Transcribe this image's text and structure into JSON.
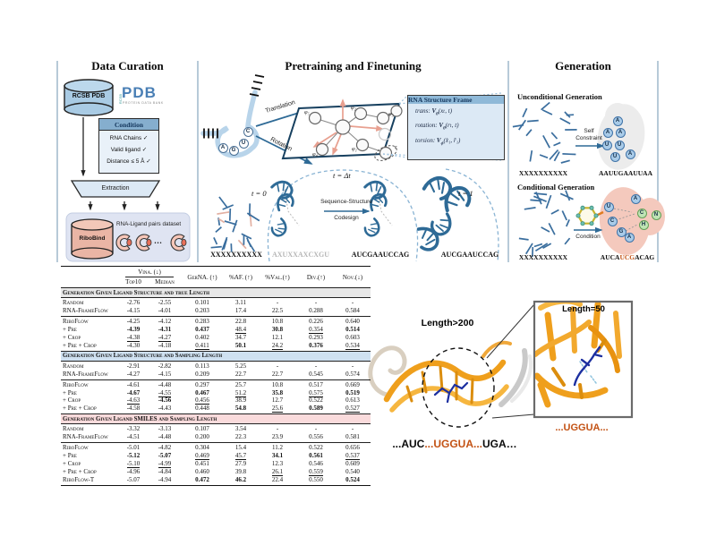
{
  "colors": {
    "steel_blue": "#2e6a96",
    "light_blue_outline": "#b8d4ea",
    "panel_fill": "#dce9f5",
    "box_header_blue": "#8fb9d8",
    "salmon": "#e8a090",
    "section1_bg": "#e7e7e7",
    "section2_bg": "#cfe1f1",
    "section3_bg": "#fadbdc",
    "orange_text": "#c35214",
    "rna_orange": "#f0a125",
    "ligand_blue": "#1c2fa0",
    "circle_blue": "#a9cbe8",
    "circle_green": "#bfe3b4",
    "blob_pink": "#f4c9bd",
    "blob_gray": "#ececec"
  },
  "panels": {
    "curation": {
      "title": "Data Curation",
      "db_label": "RCSB PDB",
      "logo": {
        "rcsb": "RCSB",
        "pdb": "PDB",
        "tagline": "PROTEIN DATA BANK"
      },
      "condition": {
        "header": "Condition",
        "rows": [
          "RNA Chains ✓",
          "Valid ligand ✓",
          "Distance ≤ 5 Å ✓"
        ]
      },
      "extraction_label": "Extraction",
      "dataset": {
        "db_label": "RiboBind",
        "caption": "RNA-Ligand pairs dataset",
        "ellipsis": "…"
      }
    },
    "pretraining": {
      "title": "Pretraining and Finetuning",
      "nucleotides": [
        "A",
        "G",
        "U",
        "C"
      ],
      "translation_label": "Translation",
      "rotation_label": "Rotation",
      "phi_labels": [
        "φ₅",
        "φ₂",
        "φ₃",
        "φ₄",
        "φ₁"
      ],
      "r_label": "r",
      "frame_box": {
        "header": "RNA Structure Frame",
        "rows": [
          {
            "label": "trans:",
            "v": "V",
            "sub": "θ",
            "args": "(xₜ, t)"
          },
          {
            "label": "rotation:",
            "v": "V",
            "sub": "θ",
            "args": "(rₜ, t)"
          },
          {
            "label": "torsion:",
            "v": "V",
            "sub": "ϕ",
            "args": "(x̂₁, r̂₁)"
          }
        ]
      },
      "t0_label": "t = 0",
      "tdt_label": "t = Δt",
      "t1_label": "t = 1",
      "codesign_line1": "Sequence-Structure",
      "codesign_line2": "Codesign",
      "seq_noise": "XXXXXXXXXX",
      "seq_partial": "AXUXXAXCXGU",
      "seq_codesign": "AUCGAAUCCAG",
      "seq_final": "AUCGAAUCCAG"
    },
    "generation": {
      "title": "Generation",
      "unconditional": {
        "label": "Unconditional Generation",
        "seq_in": "XXXXXXXXXX",
        "arrow_line1": "Self",
        "arrow_line2": "Constraint",
        "circles": [
          "A",
          "A",
          "A",
          "U",
          "U",
          "U",
          "A"
        ],
        "seq_out": "AAUUGAAUUAA"
      },
      "conditional": {
        "label": "Conditional Generation",
        "seq_in": "XXXXXXXXXX",
        "arrow_label": "Condition",
        "blue_circles": [
          "A",
          "U",
          "C",
          "G",
          "A"
        ],
        "green_circles": [
          "C",
          "N",
          "H"
        ],
        "seq_out": {
          "pre": "AUCA",
          "mid": "UCG",
          "post": "ACAG"
        }
      }
    }
  },
  "table": {
    "group_header": "Vina. (↓)",
    "sub_headers": [
      "Top10",
      "Median"
    ],
    "metric_headers": [
      "GerNA. (↑)",
      "%AF. (↑)",
      "%Val.(↑)",
      "Div.(↑)",
      "Nov.(↓)"
    ],
    "sections": [
      {
        "title": "Generation Given Ligand Structure and true Length",
        "bg": "#e7e7e7",
        "groups": [
          [
            {
              "label": "Random",
              "cells": [
                [
                  "-2.76"
                ],
                [
                  "-2.55"
                ],
                [
                  "0.101"
                ],
                [
                  "3.11"
                ],
                [
                  "-"
                ],
                [
                  "-"
                ],
                [
                  "-"
                ]
              ]
            },
            {
              "label": "RNA-FrameFlow",
              "cells": [
                [
                  "-4.15"
                ],
                [
                  "-4.01"
                ],
                [
                  "0.203"
                ],
                [
                  "17.4"
                ],
                [
                  "22.5"
                ],
                [
                  "0.288"
                ],
                [
                  "0.584"
                ]
              ]
            }
          ],
          [
            {
              "label": "RiboFlow",
              "cells": [
                [
                  "-4.25"
                ],
                [
                  "-4.12"
                ],
                [
                  "0.283"
                ],
                [
                  "22.8"
                ],
                [
                  "10.8"
                ],
                [
                  "0.226"
                ],
                [
                  "0.640"
                ]
              ]
            },
            {
              "label": "+ Pre",
              "cells": [
                [
                  "-4.39",
                  "b"
                ],
                [
                  "-4.31",
                  "b"
                ],
                [
                  "0.437",
                  "b"
                ],
                [
                  "48.4",
                  "u"
                ],
                [
                  "30.8",
                  "b"
                ],
                [
                  "0.354",
                  "u"
                ],
                [
                  "0.514",
                  "b"
                ]
              ]
            },
            {
              "label": "+ Crop",
              "cells": [
                [
                  "-4.38",
                  "u"
                ],
                [
                  "-4.27",
                  "u"
                ],
                [
                  "0.402"
                ],
                [
                  "34.7"
                ],
                [
                  "12.1"
                ],
                [
                  "0.293"
                ],
                [
                  "0.603"
                ]
              ]
            },
            {
              "label": "+ Pre + Crop",
              "cells": [
                [
                  "-4.30"
                ],
                [
                  "-4.18"
                ],
                [
                  "0.411",
                  "u"
                ],
                [
                  "50.1",
                  "b"
                ],
                [
                  "24.2",
                  "u"
                ],
                [
                  "0.376",
                  "b"
                ],
                [
                  "0.534",
                  "u"
                ]
              ]
            }
          ]
        ]
      },
      {
        "title": "Generation Given Ligand Structure and Sampling Length",
        "bg": "#cfe1f1",
        "groups": [
          [
            {
              "label": "Random",
              "cells": [
                [
                  "-2.91"
                ],
                [
                  "-2.82"
                ],
                [
                  "0.113"
                ],
                [
                  "5.25"
                ],
                [
                  "-"
                ],
                [
                  "-"
                ],
                [
                  "-"
                ]
              ]
            },
            {
              "label": "RNA-FrameFlow",
              "cells": [
                [
                  "-4.27"
                ],
                [
                  "-4.15"
                ],
                [
                  "0.209"
                ],
                [
                  "22.7"
                ],
                [
                  "22.7"
                ],
                [
                  "0.545"
                ],
                [
                  "0.574"
                ]
              ]
            }
          ],
          [
            {
              "label": "RiboFlow",
              "cells": [
                [
                  "-4.61"
                ],
                [
                  "-4.48"
                ],
                [
                  "0.297"
                ],
                [
                  "25.7"
                ],
                [
                  "10.8"
                ],
                [
                  "0.517"
                ],
                [
                  "0.669"
                ]
              ]
            },
            {
              "label": "+ Pre",
              "cells": [
                [
                  "-4.67",
                  "b"
                ],
                [
                  "-4.55",
                  "u"
                ],
                [
                  "0.467",
                  "b"
                ],
                [
                  "51.2",
                  "u"
                ],
                [
                  "35.8",
                  "b"
                ],
                [
                  "0.575",
                  "u"
                ],
                [
                  "0.519",
                  "b"
                ]
              ]
            },
            {
              "label": "+ Crop",
              "cells": [
                [
                  "-4.63",
                  "u"
                ],
                [
                  "-4.56",
                  "b"
                ],
                [
                  "0.456",
                  "u"
                ],
                [
                  "38.9"
                ],
                [
                  "12.7"
                ],
                [
                  "0.522"
                ],
                [
                  "0.613"
                ]
              ]
            },
            {
              "label": "+ Pre + Crop",
              "cells": [
                [
                  "-4.58"
                ],
                [
                  "-4.43"
                ],
                [
                  "0.448"
                ],
                [
                  "54.8",
                  "b"
                ],
                [
                  "25.6",
                  "u"
                ],
                [
                  "0.589",
                  "b"
                ],
                [
                  "0.527",
                  "u"
                ]
              ]
            }
          ]
        ]
      },
      {
        "title": "Generation Given Ligand SMILES and Sampling Length",
        "bg": "#fadbdc",
        "groups": [
          [
            {
              "label": "Random",
              "cells": [
                [
                  "-3.32"
                ],
                [
                  "-3.13"
                ],
                [
                  "0.107"
                ],
                [
                  "3.54"
                ],
                [
                  "-"
                ],
                [
                  "-"
                ],
                [
                  "-"
                ]
              ]
            },
            {
              "label": "RNA-FrameFlow",
              "cells": [
                [
                  "-4.51"
                ],
                [
                  "-4.48"
                ],
                [
                  "0.200"
                ],
                [
                  "22.3"
                ],
                [
                  "23.9"
                ],
                [
                  "0.556"
                ],
                [
                  "0.581"
                ]
              ]
            }
          ],
          [
            {
              "label": "RiboFlow",
              "cells": [
                [
                  "-5.01"
                ],
                [
                  "-4.82"
                ],
                [
                  "0.304"
                ],
                [
                  "15.4"
                ],
                [
                  "11.2"
                ],
                [
                  "0.522"
                ],
                [
                  "0.656"
                ]
              ]
            },
            {
              "label": "+ Pre",
              "cells": [
                [
                  "-5.12",
                  "b"
                ],
                [
                  "-5.07",
                  "b"
                ],
                [
                  "0.469",
                  "u"
                ],
                [
                  "45.7",
                  "u"
                ],
                [
                  "34.1",
                  "b"
                ],
                [
                  "0.561",
                  "b"
                ],
                [
                  "0.537",
                  "u"
                ]
              ]
            },
            {
              "label": "+ Crop",
              "cells": [
                [
                  "-5.10",
                  "u"
                ],
                [
                  "-4.99",
                  "u"
                ],
                [
                  "0.451"
                ],
                [
                  "27.9"
                ],
                [
                  "12.3"
                ],
                [
                  "0.546"
                ],
                [
                  "0.609"
                ]
              ]
            },
            {
              "label": "+ Pre + Crop",
              "cells": [
                [
                  "-4.96"
                ],
                [
                  "-4.84"
                ],
                [
                  "0.460"
                ],
                [
                  "39.8"
                ],
                [
                  "26.1",
                  "u"
                ],
                [
                  "0.559",
                  "u"
                ],
                [
                  "0.540"
                ]
              ]
            },
            {
              "label": "RiboFlow-T",
              "cells": [
                [
                  "-5.07"
                ],
                [
                  "-4.94"
                ],
                [
                  "0.472",
                  "b"
                ],
                [
                  "46.2",
                  "b"
                ],
                [
                  "22.4"
                ],
                [
                  "0.550"
                ],
                [
                  "0.524",
                  "b"
                ]
              ]
            }
          ]
        ]
      }
    ]
  },
  "structure_figure": {
    "label_big": "Length>200",
    "label_zoom": "Length=50",
    "zoom_seq": "...UGGUA...",
    "full_seq": {
      "p1": "...AUC",
      "mid": "...UGGUA...",
      "p2": "UGA…"
    }
  }
}
